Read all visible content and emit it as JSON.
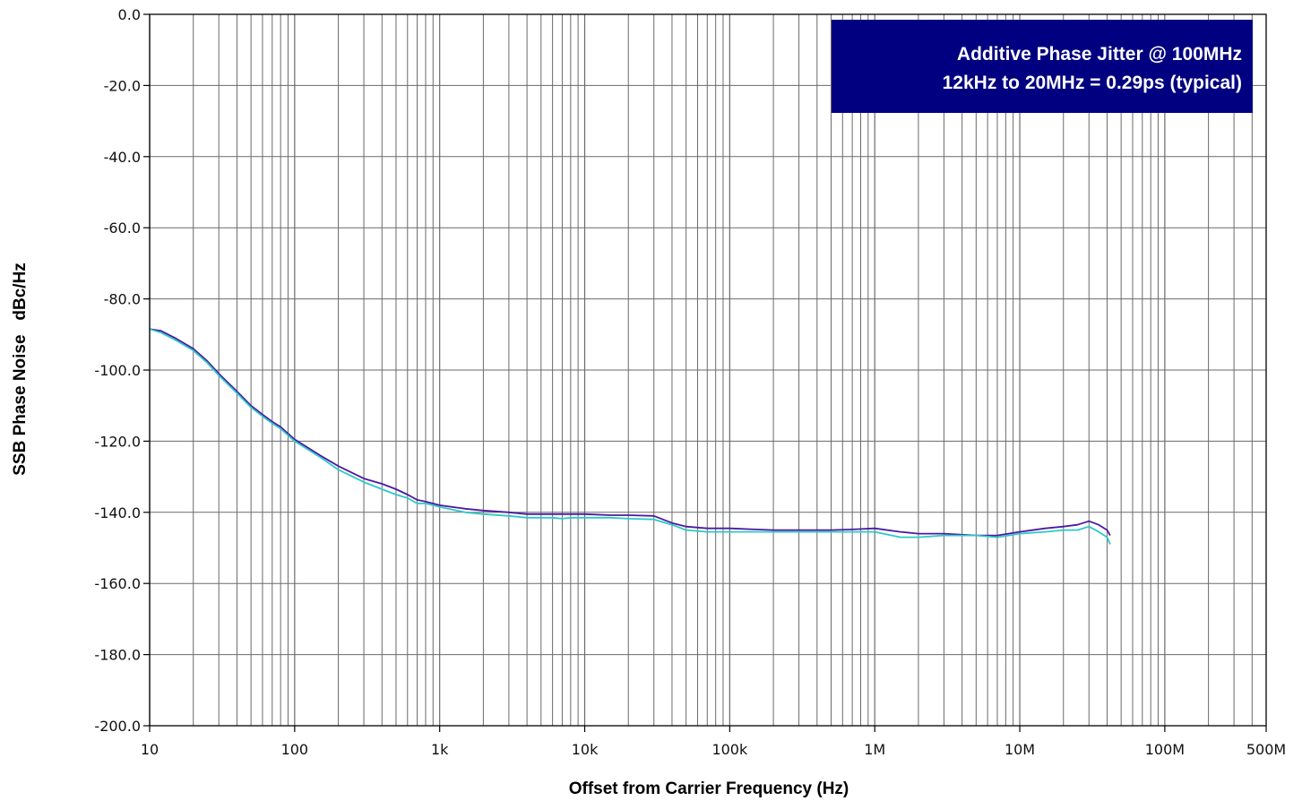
{
  "chart_data": {
    "type": "line",
    "title": "",
    "xlabel": "Offset from Carrier Frequency (Hz)",
    "ylabel": "SSB Phase Noise   dBc/Hz",
    "x_scale": "log",
    "xlim": [
      10,
      500000000
    ],
    "ylim": [
      -200,
      0
    ],
    "grid": true,
    "x_major_ticks": [
      10,
      100,
      1000,
      10000,
      100000,
      1000000,
      10000000,
      100000000,
      500000000
    ],
    "x_tick_labels": [
      "10",
      "100",
      "1k",
      "10k",
      "100k",
      "1M",
      "10M",
      "100M",
      "500M"
    ],
    "y_ticks": [
      0,
      -20,
      -40,
      -60,
      -80,
      -100,
      -120,
      -140,
      -160,
      -180,
      -200
    ],
    "y_tick_labels": [
      "0.0",
      "-20.0",
      "-40.0",
      "-60.0",
      "-80.0",
      "-100.0",
      "-120.0",
      "-140.0",
      "-160.0",
      "-180.0",
      "-200.0"
    ],
    "annotation": {
      "line1": "Additive Phase Jitter @ 100MHz",
      "line2": "12kHz to 20MHz = 0.29ps (typical)",
      "bg_color": "#000080",
      "position": "top-right"
    },
    "series": [
      {
        "color": "#4b1aa0",
        "x": [
          10,
          12,
          15,
          20,
          25,
          30,
          40,
          50,
          60,
          70,
          80,
          100,
          150,
          200,
          300,
          400,
          500,
          600,
          700,
          800,
          1000,
          1500,
          2000,
          3000,
          4000,
          5000,
          6000,
          7000,
          8000,
          10000,
          15000,
          20000,
          30000,
          40000,
          50000,
          70000,
          100000,
          150000,
          200000,
          300000,
          500000,
          700000,
          1000000,
          1500000,
          2000000,
          3000000,
          5000000,
          7000000,
          10000000,
          15000000,
          20000000,
          25000000,
          30000000,
          35000000,
          40000000,
          42000000
        ],
        "y": [
          -88.5,
          -89,
          -91,
          -94,
          -97.5,
          -101,
          -106,
          -110,
          -112.5,
          -114.5,
          -116,
          -119.5,
          -124,
          -127,
          -130.5,
          -132,
          -133.5,
          -135,
          -136.5,
          -137,
          -138,
          -139,
          -139.5,
          -140,
          -140.5,
          -140.5,
          -140.5,
          -140.5,
          -140.5,
          -140.5,
          -140.8,
          -140.8,
          -141,
          -143,
          -144,
          -144.5,
          -144.5,
          -144.8,
          -145,
          -145,
          -145,
          -144.8,
          -144.5,
          -145.5,
          -146,
          -146,
          -146.5,
          -146.5,
          -145.5,
          -144.5,
          -144,
          -143.5,
          -142.5,
          -143.5,
          -145,
          -146.5
        ]
      },
      {
        "color": "#2ec8c8",
        "x": [
          10,
          12,
          15,
          20,
          25,
          30,
          40,
          50,
          60,
          70,
          80,
          100,
          150,
          200,
          300,
          400,
          500,
          600,
          700,
          800,
          1000,
          1500,
          2000,
          3000,
          4000,
          5000,
          6000,
          7000,
          8000,
          10000,
          15000,
          20000,
          30000,
          40000,
          50000,
          70000,
          100000,
          150000,
          200000,
          300000,
          500000,
          700000,
          1000000,
          1500000,
          2000000,
          3000000,
          5000000,
          7000000,
          10000000,
          15000000,
          20000000,
          25000000,
          30000000,
          35000000,
          40000000,
          42000000
        ],
        "y": [
          -88.5,
          -89.5,
          -91.5,
          -94.5,
          -98,
          -101.5,
          -106.5,
          -110.5,
          -113,
          -115,
          -116.5,
          -120,
          -124.5,
          -128,
          -131.5,
          -133.5,
          -135,
          -136,
          -137.5,
          -137.5,
          -138.5,
          -140,
          -140.5,
          -141,
          -141.5,
          -141.5,
          -141.5,
          -141.8,
          -141.5,
          -141.5,
          -141.5,
          -141.8,
          -142,
          -143.5,
          -145,
          -145.5,
          -145.5,
          -145.5,
          -145.5,
          -145.5,
          -145.5,
          -145.5,
          -145.5,
          -147,
          -147,
          -146.5,
          -146.5,
          -147,
          -146,
          -145.5,
          -145,
          -145,
          -144,
          -145.5,
          -147,
          -149
        ]
      }
    ]
  }
}
